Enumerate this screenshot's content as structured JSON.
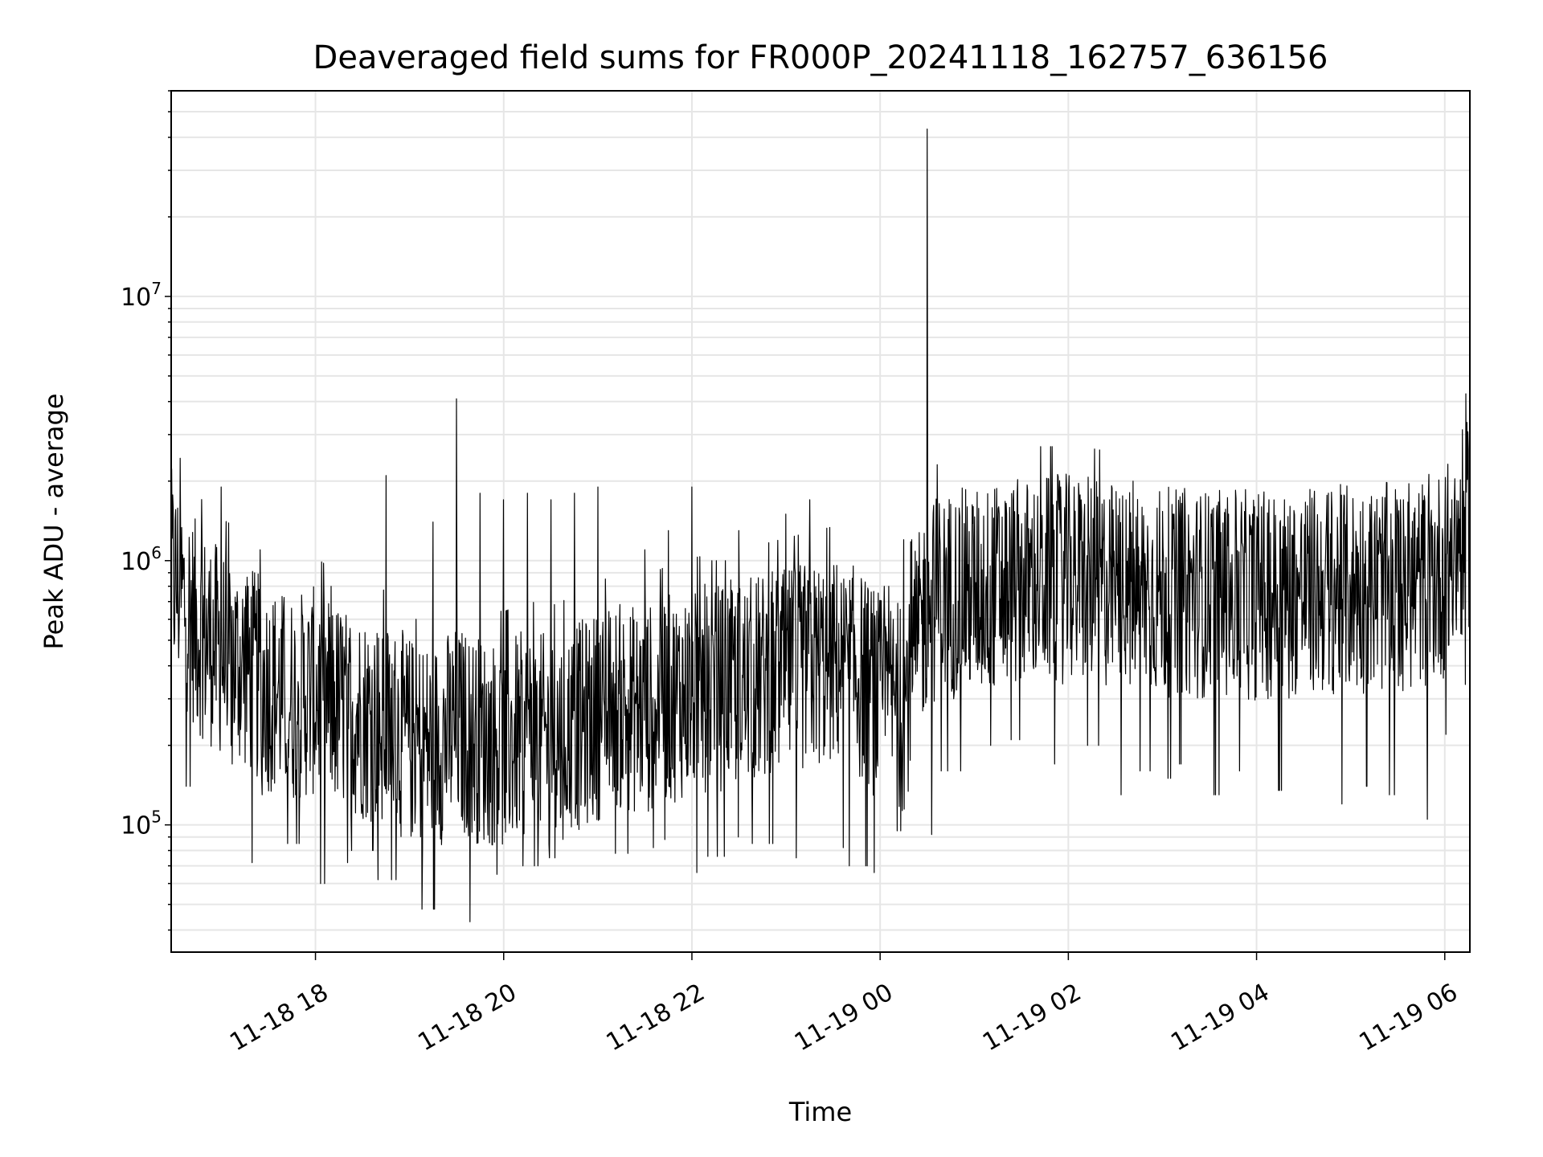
{
  "chart_data": {
    "type": "line",
    "title": "Deaveraged field sums for FR000P_20241118_162757_636156",
    "xlabel": "Time",
    "ylabel": "Peak ADU - average",
    "yscale": "log",
    "ylim": [
      33000,
      60000000
    ],
    "xlim": [
      "2024-11-18 16:28",
      "2024-11-19 06:16"
    ],
    "grid": true,
    "line_color": "#000000",
    "grid_color": "#e6e6e6",
    "x_ticks": [
      {
        "value": "2024-11-18 18:00",
        "label": "11-18 18"
      },
      {
        "value": "2024-11-18 20:00",
        "label": "11-18 20"
      },
      {
        "value": "2024-11-18 22:00",
        "label": "11-18 22"
      },
      {
        "value": "2024-11-19 00:00",
        "label": "11-19 00"
      },
      {
        "value": "2024-11-19 02:00",
        "label": "11-19 02"
      },
      {
        "value": "2024-11-19 04:00",
        "label": "11-19 04"
      },
      {
        "value": "2024-11-19 06:00",
        "label": "11-19 06"
      }
    ],
    "y_ticks": [
      {
        "value": 100000,
        "base": "10",
        "exp": "5"
      },
      {
        "value": 1000000,
        "base": "10",
        "exp": "6"
      },
      {
        "value": 10000000,
        "base": "10",
        "exp": "7"
      }
    ],
    "series": [
      {
        "x": [
          "2024-11-18 16:28",
          "2024-11-18 16:45",
          "2024-11-18 17:00",
          "2024-11-18 17:15",
          "2024-11-18 17:30",
          "2024-11-18 17:45",
          "2024-11-18 18:00",
          "2024-11-18 18:15",
          "2024-11-18 18:30",
          "2024-11-18 18:45",
          "2024-11-18 19:00",
          "2024-11-18 19:15",
          "2024-11-18 19:30",
          "2024-11-18 19:45",
          "2024-11-18 20:00",
          "2024-11-18 20:15",
          "2024-11-18 20:30",
          "2024-11-18 20:45",
          "2024-11-18 21:00",
          "2024-11-18 21:15",
          "2024-11-18 21:30",
          "2024-11-18 21:45",
          "2024-11-18 22:00",
          "2024-11-18 22:15",
          "2024-11-18 22:30",
          "2024-11-18 22:45",
          "2024-11-18 23:00",
          "2024-11-18 23:15",
          "2024-11-18 23:30",
          "2024-11-18 23:45",
          "2024-11-19 00:00",
          "2024-11-19 00:15",
          "2024-11-19 00:30",
          "2024-11-19 00:45",
          "2024-11-19 01:00",
          "2024-11-19 01:15",
          "2024-11-19 01:30",
          "2024-11-19 01:45",
          "2024-11-19 02:00",
          "2024-11-19 02:15",
          "2024-11-19 02:30",
          "2024-11-19 02:45",
          "2024-11-19 03:00",
          "2024-11-19 03:15",
          "2024-11-19 03:30",
          "2024-11-19 03:45",
          "2024-11-19 04:00",
          "2024-11-19 04:15",
          "2024-11-19 04:30",
          "2024-11-19 04:45",
          "2024-11-19 05:00",
          "2024-11-19 05:15",
          "2024-11-19 05:30",
          "2024-11-19 05:45",
          "2024-11-19 06:00",
          "2024-11-19 06:15"
        ],
        "y": [
          900000,
          550000,
          450000,
          400000,
          330000,
          300000,
          320000,
          280000,
          260000,
          240000,
          210000,
          200000,
          230000,
          210000,
          200000,
          220000,
          210000,
          230000,
          260000,
          280000,
          270000,
          300000,
          320000,
          330000,
          340000,
          360000,
          380000,
          400000,
          420000,
          380000,
          300000,
          280000,
          700000,
          750000,
          760000,
          800000,
          820000,
          850000,
          850000,
          830000,
          800000,
          780000,
          760000,
          760000,
          750000,
          740000,
          740000,
          750000,
          760000,
          770000,
          780000,
          780000,
          800000,
          820000,
          900000,
          1400000
        ],
        "max": [
          2600000,
          1800000,
          1900000,
          800000,
          1100000,
          900000,
          1000000,
          800000,
          900000,
          2100000,
          600000,
          1400000,
          4100000,
          1800000,
          1700000,
          1800000,
          1700000,
          1800000,
          1900000,
          1000000,
          1100000,
          1300000,
          1900000,
          1000000,
          1300000,
          1200000,
          1500000,
          1700000,
          1500000,
          900000,
          800000,
          1200000,
          43000000,
          1800000,
          1600000,
          1500000,
          1700000,
          2700000,
          1900000,
          2800000,
          1700000,
          2000000,
          1500000,
          1600000,
          1500000,
          1500000,
          1600000,
          1700000,
          1500000,
          1800000,
          1900000,
          2100000,
          1700000,
          1800000,
          1700000,
          4300000
        ],
        "min": [
          380000,
          140000,
          170000,
          72000,
          130000,
          85000,
          60000,
          72000,
          80000,
          62000,
          62000,
          48000,
          70000,
          43000,
          65000,
          70000,
          75000,
          74000,
          80000,
          78000,
          82000,
          88000,
          66000,
          76000,
          90000,
          85000,
          75000,
          78000,
          82000,
          70000,
          66000,
          95000,
          92000,
          160000,
          180000,
          200000,
          210000,
          170000,
          220000,
          200000,
          130000,
          160000,
          150000,
          170000,
          130000,
          160000,
          170000,
          135000,
          150000,
          155000,
          120000,
          140000,
          130000,
          105000,
          220000,
          340000
        ]
      }
    ]
  }
}
